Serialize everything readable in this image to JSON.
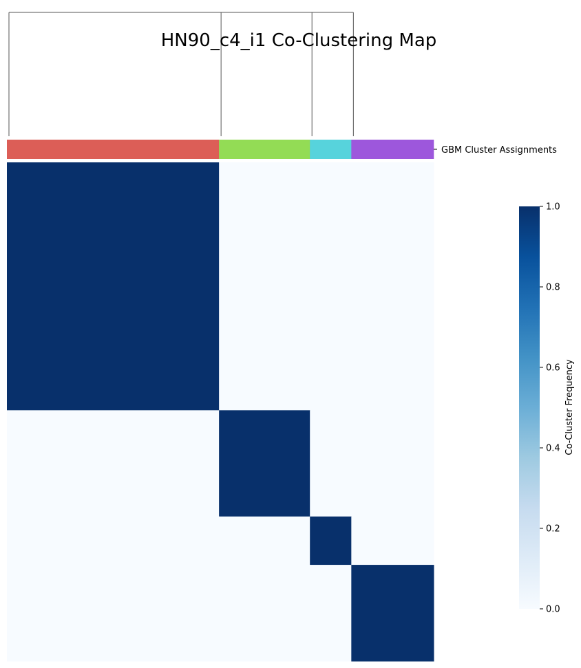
{
  "chart_data": {
    "type": "heatmap",
    "title": "HN90_c4_i1 Co-Clustering Map",
    "row_color_label": "GBM Cluster Assignments",
    "colorbar": {
      "label": "Co-Cluster Frequency",
      "ticks": [
        "0.0",
        "0.2",
        "0.4",
        "0.6",
        "0.8",
        "1.0"
      ],
      "range": [
        0.0,
        1.0
      ],
      "colormap": "Blues"
    },
    "clusters": [
      {
        "size": 0.497,
        "color": "#dc5e57"
      },
      {
        "size": 0.213,
        "color": "#93dc55"
      },
      {
        "size": 0.097,
        "color": "#57d3dc"
      },
      {
        "size": 0.193,
        "color": "#9d57dc"
      }
    ],
    "cell_value_in_cluster": 1.0,
    "cell_value_between_clusters": 0.0,
    "colors": {
      "high": "#08306b",
      "low": "#f7fbff"
    }
  }
}
